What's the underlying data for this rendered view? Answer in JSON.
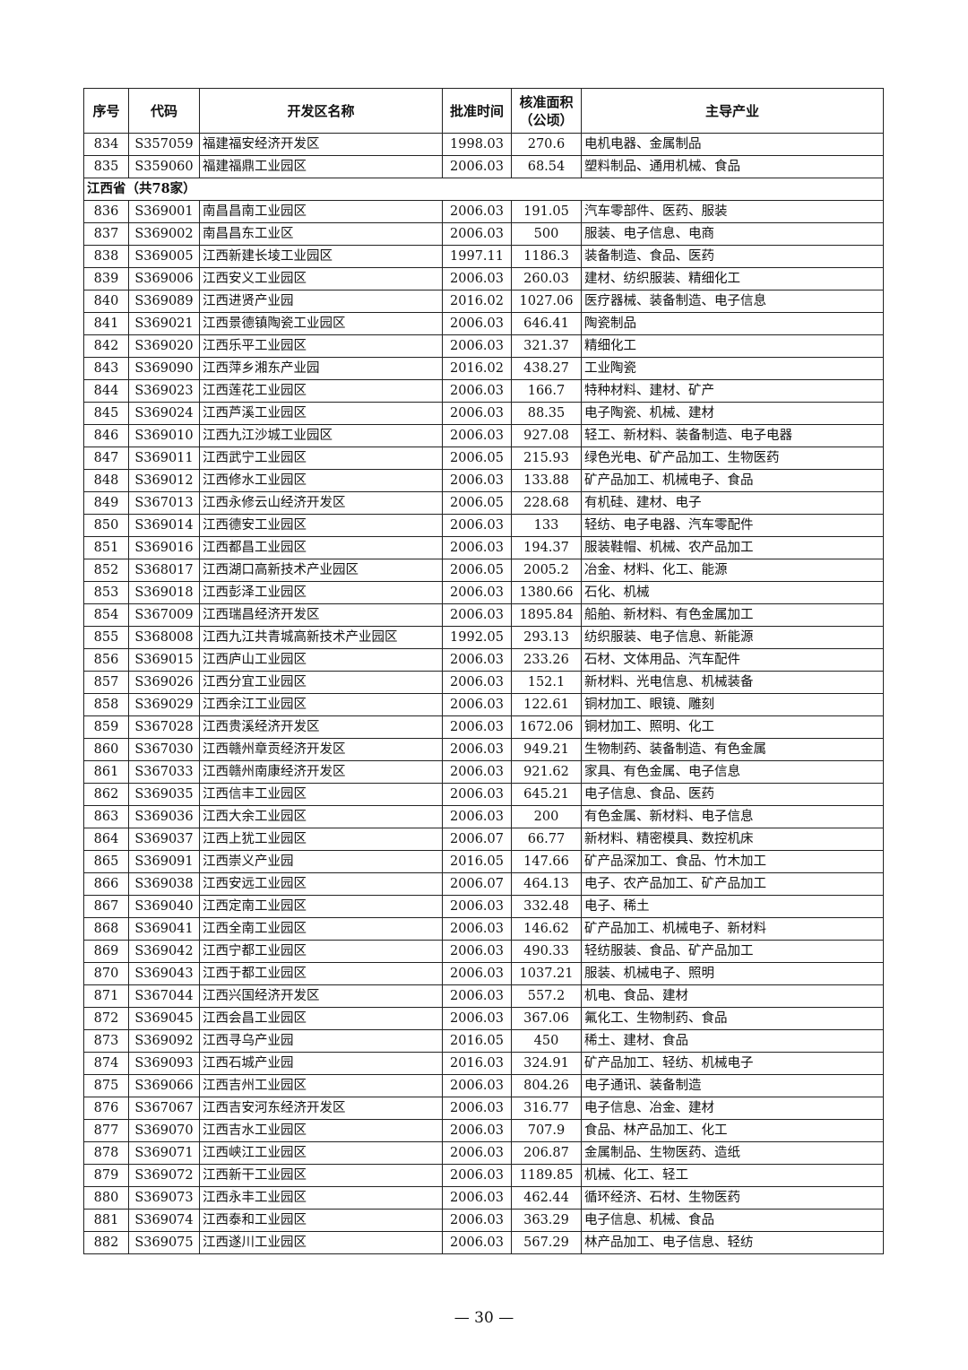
{
  "table": {
    "headers": [
      "序号",
      "代码",
      "开发区名称",
      "批准时间",
      "核准面积（公顷）",
      "主导产业"
    ],
    "rows_before": [
      [
        "834",
        "S357059",
        "福建福安经济开发区",
        "1998.03",
        "270.6",
        "电机电器、金属制品"
      ],
      [
        "835",
        "S359060",
        "福建福鼎工业园区",
        "2006.03",
        "68.54",
        "塑料制品、通用机械、食品"
      ]
    ],
    "section_label": "江西省（共78家）",
    "rows": [
      [
        "836",
        "S369001",
        "南昌昌南工业园区",
        "2006.03",
        "191.05",
        "汽车零部件、医药、服装"
      ],
      [
        "837",
        "S369002",
        "南昌昌东工业区",
        "2006.03",
        "500",
        "服装、电子信息、电商"
      ],
      [
        "838",
        "S369005",
        "江西新建长堎工业园区",
        "1997.11",
        "1186.3",
        "装备制造、食品、医药"
      ],
      [
        "839",
        "S369006",
        "江西安义工业园区",
        "2006.03",
        "260.03",
        "建材、纺织服装、精细化工"
      ],
      [
        "840",
        "S369089",
        "江西进贤产业园",
        "2016.02",
        "1027.06",
        "医疗器械、装备制造、电子信息"
      ],
      [
        "841",
        "S369021",
        "江西景德镇陶瓷工业园区",
        "2006.03",
        "646.41",
        "陶瓷制品"
      ],
      [
        "842",
        "S369020",
        "江西乐平工业园区",
        "2006.03",
        "321.37",
        "精细化工"
      ],
      [
        "843",
        "S369090",
        "江西萍乡湘东产业园",
        "2016.02",
        "438.27",
        "工业陶瓷"
      ],
      [
        "844",
        "S369023",
        "江西莲花工业园区",
        "2006.03",
        "166.7",
        "特种材料、建材、矿产"
      ],
      [
        "845",
        "S369024",
        "江西芦溪工业园区",
        "2006.03",
        "88.35",
        "电子陶瓷、机械、建材"
      ],
      [
        "846",
        "S369010",
        "江西九江沙城工业园区",
        "2006.03",
        "927.08",
        "轻工、新材料、装备制造、电子电器"
      ],
      [
        "847",
        "S369011",
        "江西武宁工业园区",
        "2006.05",
        "215.93",
        "绿色光电、矿产品加工、生物医药"
      ],
      [
        "848",
        "S369012",
        "江西修水工业园区",
        "2006.03",
        "133.88",
        "矿产品加工、机械电子、食品"
      ],
      [
        "849",
        "S367013",
        "江西永修云山经济开发区",
        "2006.05",
        "228.68",
        "有机硅、建材、电子"
      ],
      [
        "850",
        "S369014",
        "江西德安工业园区",
        "2006.03",
        "133",
        "轻纺、电子电器、汽车零配件"
      ],
      [
        "851",
        "S369016",
        "江西都昌工业园区",
        "2006.03",
        "194.37",
        "服装鞋帽、机械、农产品加工"
      ],
      [
        "852",
        "S368017",
        "江西湖口高新技术产业园区",
        "2006.05",
        "2005.2",
        "冶金、材料、化工、能源"
      ],
      [
        "853",
        "S369018",
        "江西彭泽工业园区",
        "2006.03",
        "1380.66",
        "石化、机械"
      ],
      [
        "854",
        "S367009",
        "江西瑞昌经济开发区",
        "2006.03",
        "1895.84",
        "船舶、新材料、有色金属加工"
      ],
      [
        "855",
        "S368008",
        "江西九江共青城高新技术产业园区",
        "1992.05",
        "293.13",
        "纺织服装、电子信息、新能源"
      ],
      [
        "856",
        "S369015",
        "江西庐山工业园区",
        "2006.03",
        "233.26",
        "石材、文体用品、汽车配件"
      ],
      [
        "857",
        "S369026",
        "江西分宜工业园区",
        "2006.03",
        "152.1",
        "新材料、光电信息、机械装备"
      ],
      [
        "858",
        "S369029",
        "江西余江工业园区",
        "2006.03",
        "122.61",
        "铜材加工、眼镜、雕刻"
      ],
      [
        "859",
        "S367028",
        "江西贵溪经济开发区",
        "2006.03",
        "1672.06",
        "铜材加工、照明、化工"
      ],
      [
        "860",
        "S367030",
        "江西赣州章贡经济开发区",
        "2006.03",
        "949.21",
        "生物制药、装备制造、有色金属"
      ],
      [
        "861",
        "S367033",
        "江西赣州南康经济开发区",
        "2006.03",
        "921.62",
        "家具、有色金属、电子信息"
      ],
      [
        "862",
        "S369035",
        "江西信丰工业园区",
        "2006.03",
        "645.21",
        "电子信息、食品、医药"
      ],
      [
        "863",
        "S369036",
        "江西大余工业园区",
        "2006.03",
        "200",
        "有色金属、新材料、电子信息"
      ],
      [
        "864",
        "S369037",
        "江西上犹工业园区",
        "2006.07",
        "66.77",
        "新材料、精密模具、数控机床"
      ],
      [
        "865",
        "S369091",
        "江西崇义产业园",
        "2016.05",
        "147.66",
        "矿产品深加工、食品、竹木加工"
      ],
      [
        "866",
        "S369038",
        "江西安远工业园区",
        "2006.07",
        "464.13",
        "电子、农产品加工、矿产品加工"
      ],
      [
        "867",
        "S369040",
        "江西定南工业园区",
        "2006.03",
        "332.48",
        "电子、稀土"
      ],
      [
        "868",
        "S369041",
        "江西全南工业园区",
        "2006.03",
        "146.62",
        "矿产品加工、机械电子、新材料"
      ],
      [
        "869",
        "S369042",
        "江西宁都工业园区",
        "2006.03",
        "490.33",
        "轻纺服装、食品、矿产品加工"
      ],
      [
        "870",
        "S369043",
        "江西于都工业园区",
        "2006.03",
        "1037.21",
        "服装、机械电子、照明"
      ],
      [
        "871",
        "S367044",
        "江西兴国经济开发区",
        "2006.03",
        "557.2",
        "机电、食品、建材"
      ],
      [
        "872",
        "S369045",
        "江西会昌工业园区",
        "2006.03",
        "367.06",
        "氟化工、生物制药、食品"
      ],
      [
        "873",
        "S369092",
        "江西寻乌产业园",
        "2016.05",
        "450",
        "稀土、建材、食品"
      ],
      [
        "874",
        "S369093",
        "江西石城产业园",
        "2016.03",
        "324.91",
        "矿产品加工、轻纺、机械电子"
      ],
      [
        "875",
        "S369066",
        "江西吉州工业园区",
        "2006.03",
        "804.26",
        "电子通讯、装备制造"
      ],
      [
        "876",
        "S367067",
        "江西吉安河东经济开发区",
        "2006.03",
        "316.77",
        "电子信息、冶金、建材"
      ],
      [
        "877",
        "S369070",
        "江西吉水工业园区",
        "2006.03",
        "707.9",
        "食品、林产品加工、化工"
      ],
      [
        "878",
        "S369071",
        "江西峡江工业园区",
        "2006.03",
        "206.87",
        "金属制品、生物医药、造纸"
      ],
      [
        "879",
        "S369072",
        "江西新干工业园区",
        "2006.03",
        "1189.85",
        "机械、化工、轻工"
      ],
      [
        "880",
        "S369073",
        "江西永丰工业园区",
        "2006.03",
        "462.44",
        "循环经济、石材、生物医药"
      ],
      [
        "881",
        "S369074",
        "江西泰和工业园区",
        "2006.03",
        "363.29",
        "电子信息、机械、食品"
      ],
      [
        "882",
        "S369075",
        "江西遂川工业园区",
        "2006.03",
        "567.29",
        "林产品加工、电子信息、轻纺"
      ]
    ]
  },
  "page_number": "— 30 —"
}
